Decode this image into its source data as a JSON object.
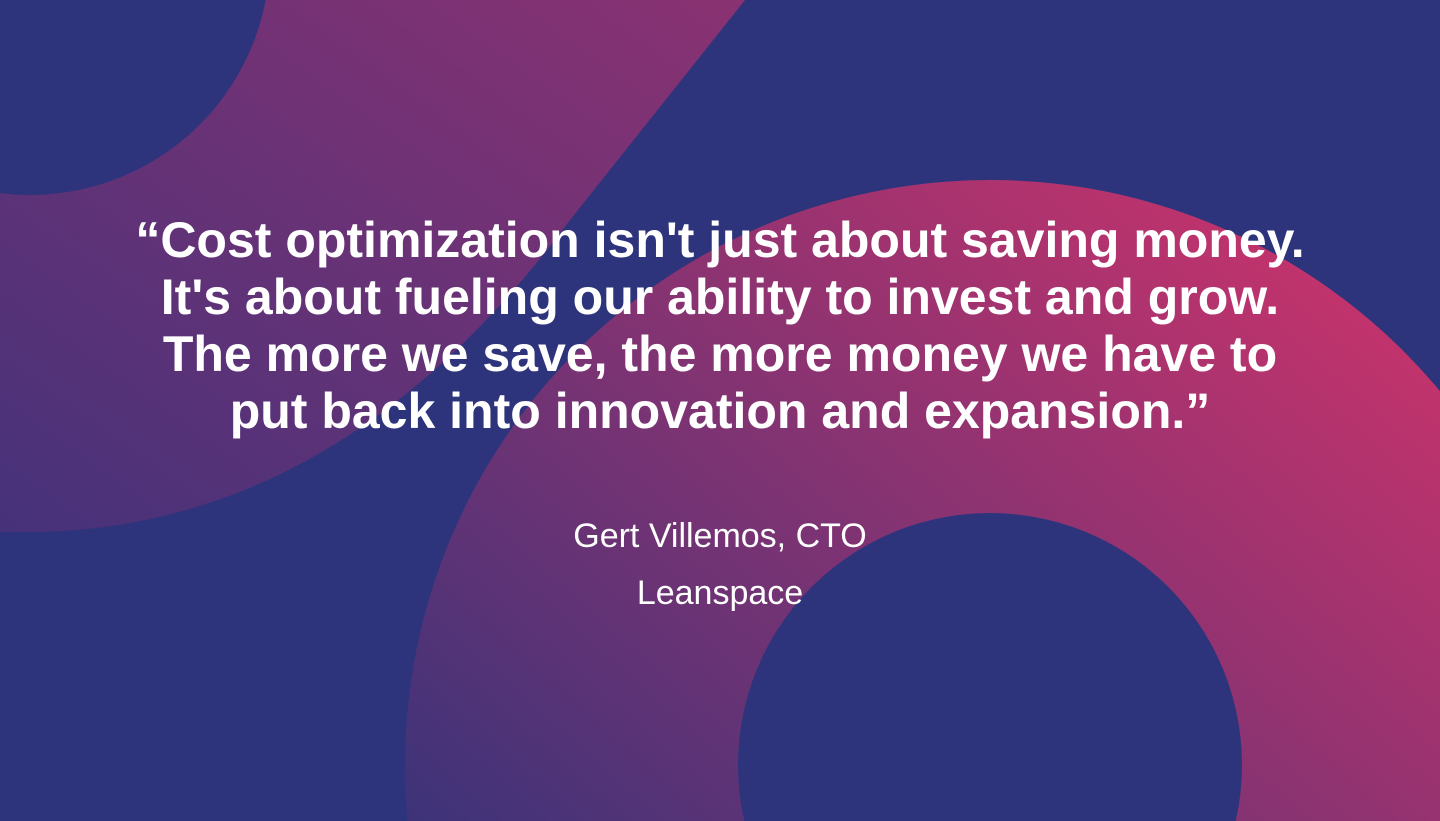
{
  "colors": {
    "background": "#2d347b",
    "gradient_start": "#4a3278",
    "gradient_end": "#c0336d",
    "text": "#ffffff"
  },
  "quote": {
    "lines": [
      "“Cost optimization isn't just about saving money.",
      "It's about fueling our ability to invest and grow.",
      "The more we save, the more money we have to",
      "put back into innovation and expansion.”"
    ]
  },
  "attribution": {
    "name": "Gert Villemos, CTO",
    "company": "Leanspace"
  }
}
